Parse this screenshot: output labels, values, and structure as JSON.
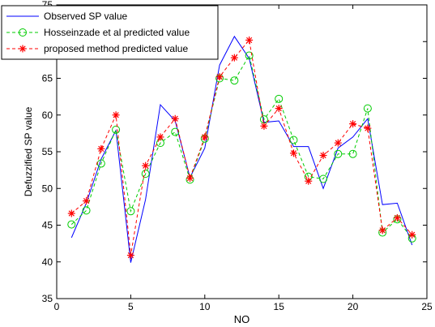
{
  "chart_data": {
    "type": "line",
    "title": "",
    "xlabel": "NO",
    "ylabel": "Defuzzified SP value",
    "xlim": [
      0,
      25
    ],
    "ylim": [
      35,
      75
    ],
    "xticks": [
      "0",
      "5",
      "10",
      "15",
      "20",
      "25"
    ],
    "yticks": [
      "35",
      "40",
      "45",
      "50",
      "55",
      "60",
      "65",
      "70",
      "75"
    ],
    "grid": false,
    "legend_position": "top-left",
    "x": [
      1,
      2,
      3,
      4,
      5,
      6,
      7,
      8,
      9,
      10,
      11,
      12,
      13,
      14,
      15,
      16,
      17,
      18,
      19,
      20,
      21,
      22,
      23,
      24
    ],
    "series": [
      {
        "name": "Observed SP value",
        "color": "#0000ff",
        "style": "solid",
        "marker": "none",
        "values": [
          43.3,
          48.0,
          54.0,
          57.9,
          39.9,
          48.5,
          61.4,
          59.2,
          51.5,
          55.5,
          66.8,
          70.7,
          67.7,
          59.0,
          59.2,
          55.7,
          55.7,
          50.0,
          55.5,
          57.0,
          59.5,
          47.8,
          48.0,
          42.3
        ]
      },
      {
        "name": "Hosseinzade et al predicted value",
        "color": "#00cc00",
        "style": "dashed",
        "marker": "circle",
        "values": [
          45.1,
          47.0,
          53.4,
          58.0,
          46.9,
          52.0,
          56.2,
          57.7,
          51.2,
          56.8,
          65.0,
          64.7,
          68.1,
          59.4,
          62.2,
          56.6,
          51.6,
          51.3,
          54.7,
          54.7,
          60.9,
          44.0,
          45.8,
          43.2
        ]
      },
      {
        "name": "proposed method predicted value",
        "color": "#ff0000",
        "style": "dashed",
        "marker": "asterisk",
        "values": [
          46.6,
          48.3,
          55.4,
          60.0,
          40.9,
          53.1,
          57.0,
          59.5,
          51.4,
          57.0,
          65.2,
          67.8,
          70.2,
          58.5,
          60.9,
          54.8,
          51.0,
          54.5,
          56.2,
          58.8,
          58.2,
          44.3,
          46.0,
          43.7
        ]
      }
    ]
  }
}
